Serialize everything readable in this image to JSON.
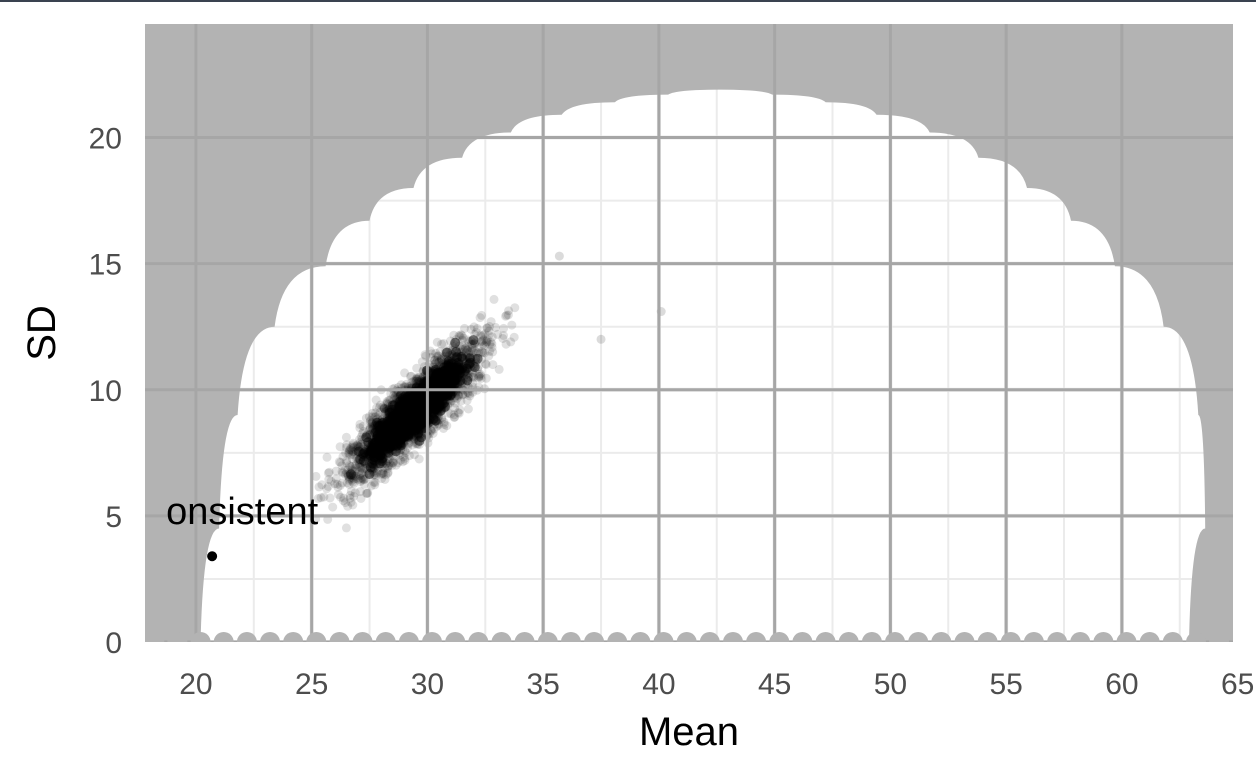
{
  "chart_data": {
    "type": "scatter",
    "xlabel": "Mean",
    "ylabel": "SD",
    "xlim": [
      17.8,
      64.8
    ],
    "ylim": [
      0,
      24.5
    ],
    "x_ticks": [
      "20",
      "25",
      "30",
      "35",
      "40",
      "45",
      "50",
      "55",
      "60",
      "65"
    ],
    "y_ticks": [
      "0",
      "5",
      "10",
      "15",
      "20"
    ],
    "grid": true,
    "colors": {
      "infeasible_region": "#b3b3b3",
      "points": "#000000",
      "grid": "#ebebeb",
      "panel": "#ffffff"
    },
    "feasible_boundary": {
      "description": "scalloped upper limit of SD by mean",
      "points": [
        [
          20.2,
          0
        ],
        [
          21.0,
          4.5
        ],
        [
          21.8,
          9.0
        ],
        [
          23.4,
          12.5
        ],
        [
          25.6,
          14.9
        ],
        [
          27.5,
          16.7
        ],
        [
          29.4,
          18.0
        ],
        [
          31.5,
          19.2
        ],
        [
          33.6,
          20.2
        ],
        [
          35.8,
          20.9
        ],
        [
          38.1,
          21.4
        ],
        [
          40.4,
          21.7
        ],
        [
          42.6,
          21.9
        ],
        [
          44.9,
          21.7
        ],
        [
          47.2,
          21.4
        ],
        [
          49.4,
          20.9
        ],
        [
          51.7,
          20.2
        ],
        [
          53.8,
          19.2
        ],
        [
          55.9,
          18.0
        ],
        [
          57.8,
          16.7
        ],
        [
          59.7,
          14.9
        ],
        [
          61.8,
          12.5
        ],
        [
          63.3,
          9.0
        ],
        [
          63.6,
          4.5
        ],
        [
          62.9,
          0
        ]
      ]
    },
    "cloud": {
      "description": "simulated means and SDs",
      "center": [
        29.5,
        9.2
      ],
      "x_range": [
        24.3,
        40.1
      ],
      "y_range": [
        2.8,
        15.4
      ],
      "outliers": [
        [
          40.1,
          13.1
        ],
        [
          37.5,
          12.0
        ],
        [
          35.7,
          15.3
        ]
      ]
    },
    "highlight_point": {
      "x": 20.7,
      "y": 3.4
    },
    "annotation": {
      "text": "onsistent",
      "x": 20.7,
      "y": 5.2
    }
  }
}
